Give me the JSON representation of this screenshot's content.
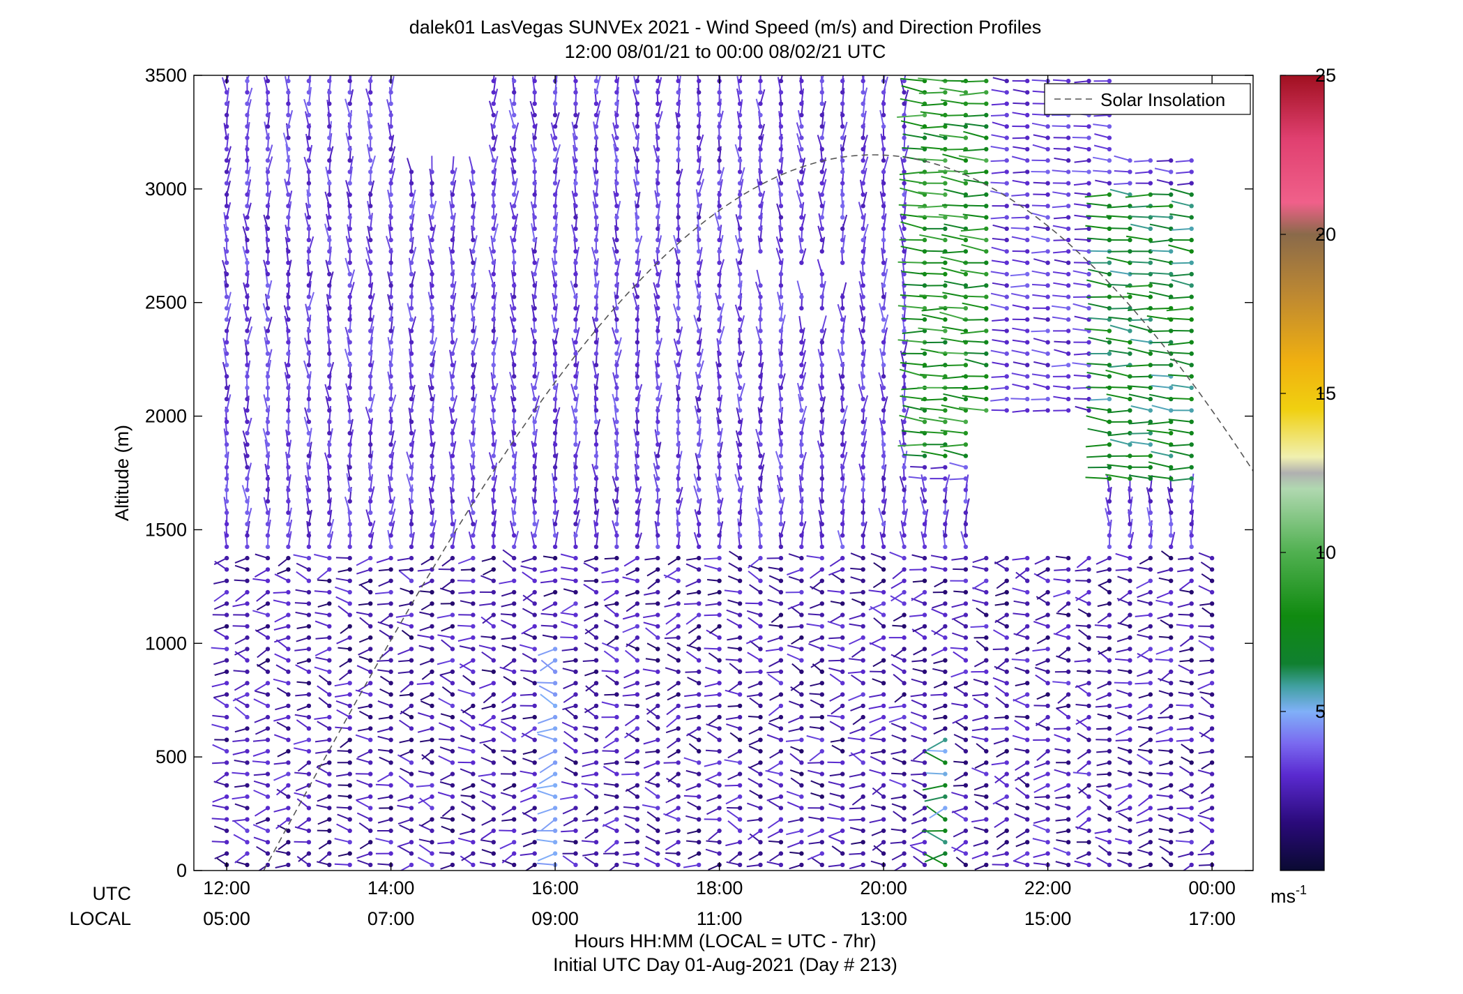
{
  "chart_data": {
    "type": "wind-profile",
    "title": "dalek01 LasVegas SUNVEx 2021 - Wind Speed (m/s) and Direction Profiles",
    "subtitle": "12:00 08/01/21 to 00:00 08/02/21  UTC",
    "ylabel": "Altitude (m)",
    "ylim": [
      0,
      3500
    ],
    "yticks": [
      "0",
      "500",
      "1000",
      "1500",
      "2000",
      "2500",
      "3000",
      "3500"
    ],
    "xlim_hours": [
      11.6,
      24.5
    ],
    "utc_row_label": "UTC",
    "local_row_label": "LOCAL",
    "xticks_hours": [
      12,
      14,
      16,
      18,
      20,
      22,
      24
    ],
    "utc_ticks": [
      "12:00",
      "14:00",
      "16:00",
      "18:00",
      "20:00",
      "22:00",
      "00:00"
    ],
    "local_ticks": [
      "05:00",
      "07:00",
      "09:00",
      "11:00",
      "13:00",
      "15:00",
      "17:00"
    ],
    "xlabel": "Hours HH:MM  (LOCAL = UTC - 7hr)",
    "xlabel2": "Initial UTC Day 01-Aug-2021 (Day # 213)",
    "colorbar": {
      "label": "ms",
      "label_sup": "-1",
      "range": [
        0,
        25
      ],
      "ticks": [
        "5",
        "10",
        "15",
        "20",
        "25"
      ],
      "tick_values": [
        5,
        10,
        15,
        20,
        25
      ],
      "stops": [
        {
          "v": 0,
          "c": "#0a0a32"
        },
        {
          "v": 1.5,
          "c": "#2a0a7a"
        },
        {
          "v": 3,
          "c": "#5a2ad0"
        },
        {
          "v": 4,
          "c": "#7a6af0"
        },
        {
          "v": 5,
          "c": "#80b0f8"
        },
        {
          "v": 5.8,
          "c": "#40a0a0"
        },
        {
          "v": 6.5,
          "c": "#108030"
        },
        {
          "v": 8,
          "c": "#108a10"
        },
        {
          "v": 10,
          "c": "#50b050"
        },
        {
          "v": 12,
          "c": "#b0d8b0"
        },
        {
          "v": 12.5,
          "c": "#b0b0b0"
        },
        {
          "v": 13,
          "c": "#f0f0b0"
        },
        {
          "v": 14.5,
          "c": "#f0d010"
        },
        {
          "v": 16,
          "c": "#f0b010"
        },
        {
          "v": 18,
          "c": "#c08a30"
        },
        {
          "v": 20,
          "c": "#8a6a4a"
        },
        {
          "v": 21,
          "c": "#f0608a"
        },
        {
          "v": 23,
          "c": "#e04070"
        },
        {
          "v": 25,
          "c": "#a01020"
        }
      ]
    },
    "legend": {
      "label": "Solar Insolation",
      "position": "top-right",
      "line_style": "dashed",
      "color": "#555555"
    },
    "solar_insolation": {
      "sunrise_hour": 12.45,
      "sunset_hour": 27.3,
      "peak_hour": 19.87,
      "peak_altitude_m": 3150
    },
    "wind_profiles": {
      "start_hour": 12.0,
      "end_hour": 24.0,
      "interval_hours": 0.25,
      "lowest_gate_m": 25,
      "gate_spacing_m": 50,
      "speed_range_ms": [
        0,
        11
      ]
    }
  }
}
